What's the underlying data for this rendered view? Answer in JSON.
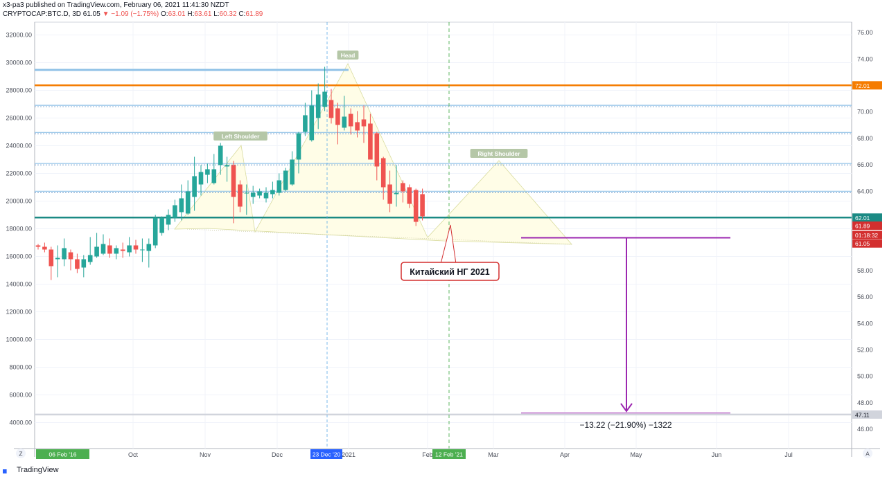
{
  "header": {
    "line1": "x3-pa3 published on TradingView.com, February 06, 2021 11:41:30 NZDT",
    "symbol": "CRYPTOCAP:BTC.D, 3D",
    "last": "61.05",
    "change": "▼ −1.09 (−1.75%)",
    "o_label": "O:",
    "o": "63.01",
    "h_label": "H:",
    "h": "63.61",
    "l_label": "L:",
    "l": "60.32",
    "c_label": "C:",
    "c": "61.89"
  },
  "footer": {
    "brand": "TradingView"
  },
  "colors": {
    "up": "#26a69a",
    "down": "#ef5350",
    "orange": "#f57c00",
    "teal": "#1b8a84",
    "blue_line": "#90c2e7",
    "purple": "#9c27b0",
    "pattern_fill": "#fffde7"
  },
  "chart_data": {
    "type": "candlestick",
    "left_axis": {
      "range": [
        3000,
        33000
      ],
      "ticks": [
        "32000.00",
        "30000.00",
        "28000.00",
        "26000.00",
        "24000.00",
        "22000.00",
        "20000.00",
        "18000.00",
        "16000.00",
        "14000.00",
        "12000.00",
        "10000.00",
        "8000.00",
        "6000.00",
        "4000.00"
      ]
    },
    "right_axis": {
      "range": [
        45,
        77
      ],
      "ticks": [
        "76.00",
        "74.00",
        "72.00",
        "70.00",
        "68.00",
        "66.00",
        "64.00",
        "62.00",
        "60.00",
        "58.00",
        "56.00",
        "54.00",
        "52.00",
        "50.00",
        "48.00",
        "46.00"
      ]
    },
    "x_ticks": [
      "Oct",
      "Nov",
      "Dec",
      "2021",
      "Feb",
      "Mar",
      "Apr",
      "May",
      "Jun",
      "Jul"
    ],
    "x_markers": [
      "06 Feb '16",
      "23 Dec '20",
      "12 Feb '21"
    ],
    "axis_buttons": [
      "Z",
      "A"
    ],
    "price_labels": [
      "72.01",
      "62.01",
      "61.89",
      "01:18:32",
      "61.05",
      "47.11"
    ],
    "pattern_labels": [
      "Left Shoulder",
      "Head",
      "Right Shoulder"
    ],
    "annotation": "Китайский НГ 2021",
    "measure_label": "−13.22 (−21.90%) −1322",
    "horizontal_levels": [
      {
        "value": 72.01,
        "color": "orange"
      },
      {
        "value": 70.5,
        "color": "blue"
      },
      {
        "value": 68.45,
        "color": "blue"
      },
      {
        "value": 66.1,
        "color": "blue"
      },
      {
        "value": 64.0,
        "color": "blue"
      },
      {
        "value": 62.01,
        "color": "teal"
      },
      {
        "value": 47.11,
        "color": "gray"
      }
    ],
    "candles": [
      {
        "o": 16800,
        "c": 16700,
        "h": 16900,
        "l": 16500
      },
      {
        "o": 16700,
        "c": 16500,
        "h": 17000,
        "l": 16300
      },
      {
        "o": 16500,
        "c": 15300,
        "h": 16700,
        "l": 14300
      },
      {
        "o": 15800,
        "c": 15900,
        "h": 16800,
        "l": 14500
      },
      {
        "o": 15800,
        "c": 16600,
        "h": 17300,
        "l": 15300
      },
      {
        "o": 16300,
        "c": 15800,
        "h": 16500,
        "l": 15000
      },
      {
        "o": 15800,
        "c": 15100,
        "h": 16200,
        "l": 14800
      },
      {
        "o": 15200,
        "c": 15800,
        "h": 16100,
        "l": 14500
      },
      {
        "o": 15600,
        "c": 16100,
        "h": 17400,
        "l": 15400
      },
      {
        "o": 16000,
        "c": 16700,
        "h": 17700,
        "l": 15900
      },
      {
        "o": 16200,
        "c": 16900,
        "h": 17600,
        "l": 16100
      },
      {
        "o": 16800,
        "c": 16200,
        "h": 17300,
        "l": 15900
      },
      {
        "o": 16200,
        "c": 16600,
        "h": 16800,
        "l": 15800
      },
      {
        "o": 16500,
        "c": 16400,
        "h": 17000,
        "l": 15900
      },
      {
        "o": 16300,
        "c": 16800,
        "h": 17400,
        "l": 16000
      },
      {
        "o": 16800,
        "c": 16500,
        "h": 17200,
        "l": 16200
      },
      {
        "o": 16500,
        "c": 16500,
        "h": 17300,
        "l": 15600
      },
      {
        "o": 16400,
        "c": 16900,
        "h": 17300,
        "l": 15200
      },
      {
        "o": 16800,
        "c": 18800,
        "h": 19000,
        "l": 16600
      },
      {
        "o": 17700,
        "c": 18800,
        "h": 18900,
        "l": 17500
      },
      {
        "o": 18300,
        "c": 19000,
        "h": 19400,
        "l": 17900
      },
      {
        "o": 18800,
        "c": 19700,
        "h": 20100,
        "l": 18500
      },
      {
        "o": 19200,
        "c": 20200,
        "h": 21200,
        "l": 18600
      },
      {
        "o": 19100,
        "c": 20700,
        "h": 21500,
        "l": 19000
      },
      {
        "o": 20300,
        "c": 21800,
        "h": 23200,
        "l": 19300
      },
      {
        "o": 21200,
        "c": 22100,
        "h": 22600,
        "l": 20400
      },
      {
        "o": 21900,
        "c": 22300,
        "h": 22700,
        "l": 21300
      },
      {
        "o": 21300,
        "c": 22300,
        "h": 23400,
        "l": 21200
      },
      {
        "o": 22600,
        "c": 24000,
        "h": 24200,
        "l": 21900
      },
      {
        "o": 22500,
        "c": 22600,
        "h": 23200,
        "l": 21400
      },
      {
        "o": 22600,
        "c": 20300,
        "h": 22900,
        "l": 18400
      },
      {
        "o": 21200,
        "c": 19600,
        "h": 21500,
        "l": 19200
      },
      {
        "o": 20600,
        "c": 20600,
        "h": 21200,
        "l": 19000
      },
      {
        "o": 20300,
        "c": 20600,
        "h": 21100,
        "l": 19800
      },
      {
        "o": 20400,
        "c": 20700,
        "h": 20900,
        "l": 20200
      },
      {
        "o": 20200,
        "c": 20600,
        "h": 21000,
        "l": 19900
      },
      {
        "o": 20500,
        "c": 20800,
        "h": 21400,
        "l": 20200
      },
      {
        "o": 20600,
        "c": 21500,
        "h": 22000,
        "l": 20400
      },
      {
        "o": 20800,
        "c": 22200,
        "h": 22400,
        "l": 20700
      },
      {
        "o": 21200,
        "c": 23000,
        "h": 23600,
        "l": 21100
      },
      {
        "o": 23000,
        "c": 24900,
        "h": 25000,
        "l": 22000
      },
      {
        "o": 25000,
        "c": 26200,
        "h": 27100,
        "l": 24700
      },
      {
        "o": 24400,
        "c": 26900,
        "h": 28000,
        "l": 24300
      },
      {
        "o": 26000,
        "c": 27700,
        "h": 28500,
        "l": 25200
      },
      {
        "o": 26800,
        "c": 27900,
        "h": 29700,
        "l": 26500
      },
      {
        "o": 27300,
        "c": 26000,
        "h": 28100,
        "l": 25600
      },
      {
        "o": 26700,
        "c": 25500,
        "h": 27100,
        "l": 24100
      },
      {
        "o": 25300,
        "c": 26100,
        "h": 27600,
        "l": 25100
      },
      {
        "o": 26300,
        "c": 25400,
        "h": 26700,
        "l": 24800
      },
      {
        "o": 25700,
        "c": 25100,
        "h": 26500,
        "l": 24600
      },
      {
        "o": 25900,
        "c": 25400,
        "h": 26900,
        "l": 24200
      },
      {
        "o": 25600,
        "c": 23000,
        "h": 26300,
        "l": 23000
      },
      {
        "o": 24900,
        "c": 22500,
        "h": 25000,
        "l": 21500
      },
      {
        "o": 23100,
        "c": 21000,
        "h": 23200,
        "l": 20100
      },
      {
        "o": 21200,
        "c": 19800,
        "h": 22200,
        "l": 19200
      },
      {
        "o": 20500,
        "c": 20600,
        "h": 22600,
        "l": 19600
      },
      {
        "o": 21300,
        "c": 20700,
        "h": 21500,
        "l": 19900
      },
      {
        "o": 21000,
        "c": 19800,
        "h": 21200,
        "l": 19500
      },
      {
        "o": 20800,
        "c": 18500,
        "h": 20900,
        "l": 18200
      },
      {
        "o": 20500,
        "c": 18900,
        "h": 20900,
        "l": 18600
      }
    ]
  }
}
